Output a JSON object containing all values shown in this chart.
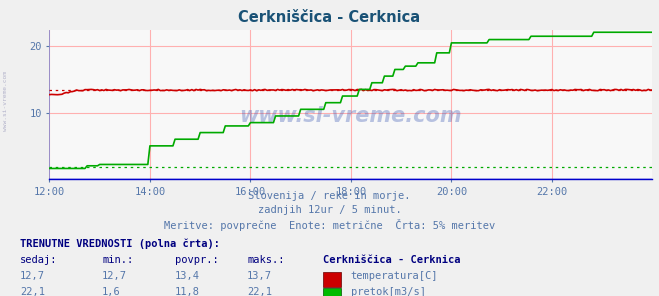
{
  "title": "Cerkniščica - Cerknica",
  "title_color": "#1a5276",
  "bg_color": "#f0f0f0",
  "plot_bg_color": "#f8f8f8",
  "grid_color": "#ffb0b0",
  "tick_color": "#5577aa",
  "text_color": "#5577aa",
  "xmin": 0,
  "xmax": 288,
  "ymin": 0,
  "ymax": 22.5,
  "yticks": [
    10,
    20
  ],
  "xtick_labels": [
    "12:00",
    "14:00",
    "16:00",
    "18:00",
    "20:00",
    "22:00"
  ],
  "xtick_positions": [
    0,
    48,
    96,
    144,
    192,
    240
  ],
  "temp_color": "#cc0000",
  "flow_color": "#00aa00",
  "level_color": "#0000cc",
  "temp_avg": 13.4,
  "flow_min_dotted": 1.8,
  "subtitle1": "Slovenija / reke in morje.",
  "subtitle2": "zadnjih 12ur / 5 minut.",
  "subtitle3": "Meritve: povprečne  Enote: metrične  Črta: 5% meritev",
  "label_title": "TRENUTNE VREDNOSTI (polna črta):",
  "col_sedaj": "sedaj:",
  "col_min": "min.:",
  "col_povpr": "povpr.:",
  "col_maks": "maks.:",
  "col_station": "Cerkniščica - Cerknica",
  "row1_vals": [
    "12,7",
    "12,7",
    "13,4",
    "13,7"
  ],
  "row1_label": "temperatura[C]",
  "row2_vals": [
    "22,1",
    "1,6",
    "11,8",
    "22,1"
  ],
  "row2_label": "pretok[m3/s]",
  "watermark": "www.si-vreme.com"
}
